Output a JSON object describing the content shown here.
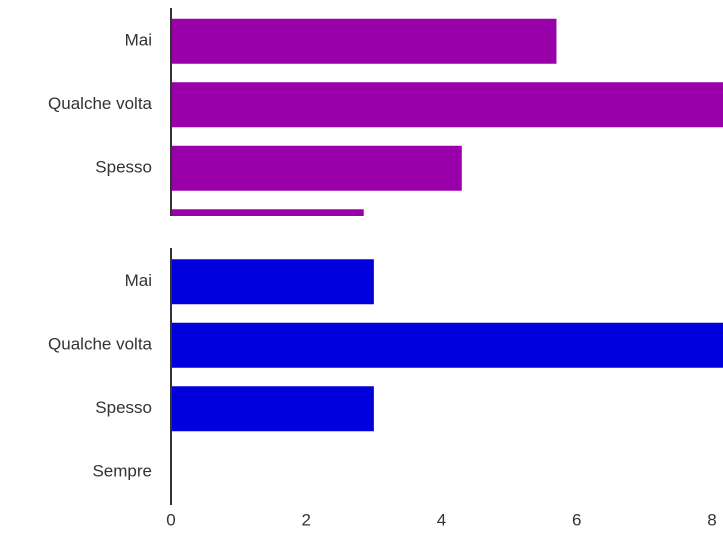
{
  "chart_data": [
    {
      "type": "bar",
      "orientation": "horizontal",
      "categories": [
        "Mai",
        "Qualche volta",
        "Spesso",
        null
      ],
      "values": [
        5.7,
        8.2,
        4.3,
        2.85
      ],
      "color": "#9900aa",
      "xlim": [
        0,
        8
      ]
    },
    {
      "type": "bar",
      "orientation": "horizontal",
      "categories": [
        "Mai",
        "Qualche volta",
        "Spesso",
        "Sempre"
      ],
      "values": [
        3,
        8.2,
        3,
        0
      ],
      "color": "#0000dd",
      "xlim": [
        0,
        8
      ],
      "xticks": [
        0,
        2,
        4,
        6,
        8
      ]
    }
  ]
}
